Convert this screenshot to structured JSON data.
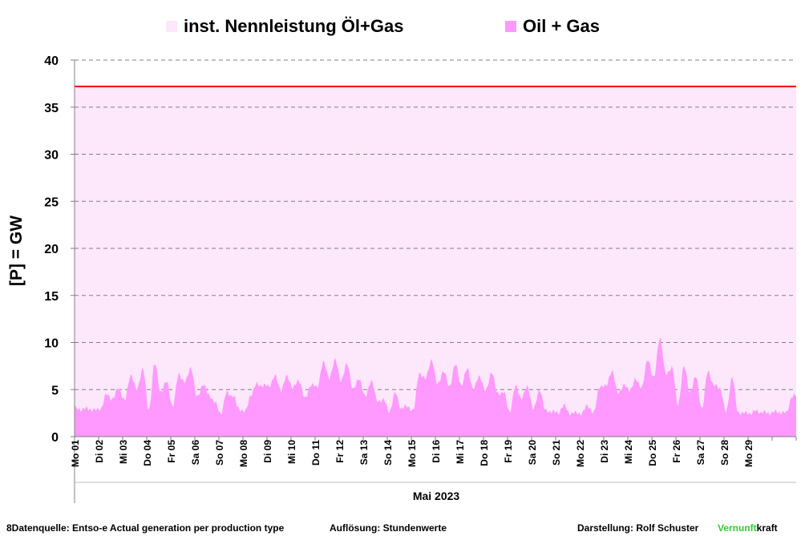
{
  "legend": {
    "capacity_label": "inst. Nennleistung Öl+Gas",
    "series_label": "Oil + Gas",
    "capacity_color": "#fde7fb",
    "series_color": "#ff99ff"
  },
  "footer": {
    "source": "8Datenquelle: Entso-e  Actual generation per production type",
    "resolution": "Auflösung: Stundenwerte",
    "author": "Darstellung:  Rolf Schuster",
    "brand_green": "Vernunft",
    "brand_rest": "kraft"
  },
  "chart_data": {
    "type": "area",
    "ylabel": "[P]  = GW",
    "xlabel": "Mai 2023",
    "ylim": [
      0,
      40
    ],
    "yticks": [
      0,
      5,
      10,
      15,
      20,
      25,
      30,
      35,
      40
    ],
    "grid": true,
    "x_tick_labels": [
      "Mo 01",
      "Di 02",
      "Mi 03",
      "Do 04",
      "Fr 05",
      "Sa 06",
      "So 07",
      "Mo 08",
      "Di 09",
      "Mi 10",
      "Do 11",
      "Fr 12",
      "Sa 13",
      "So 14",
      "Mo 15",
      "Di 16",
      "Mi 17",
      "Do 18",
      "Fr 19",
      "Sa 20",
      "So 21",
      "Mo 22",
      "Di 23",
      "Mi 24",
      "Do 25",
      "Fr 26",
      "Sa 27",
      "So 28",
      "Mo 29"
    ],
    "capacity_line": {
      "name": "inst. Nennleistung Öl+Gas",
      "value": 37.2,
      "color": "#ff0000"
    },
    "series": [
      {
        "name": "Oil + Gas",
        "color": "#ff99ff",
        "day_profiles": [
          [
            3.0,
            2.9,
            3.0,
            2.8
          ],
          [
            3.0,
            4.5,
            4.0,
            5.2
          ],
          [
            3.8,
            6.6,
            5.0,
            7.2
          ],
          [
            2.9,
            7.7,
            4.8,
            5.8
          ],
          [
            3.2,
            6.7,
            5.7,
            7.4
          ],
          [
            4.2,
            5.5,
            4.5,
            3.6
          ],
          [
            2.5,
            4.7,
            4.3,
            3.0
          ],
          [
            2.6,
            4.5,
            5.6,
            5.4
          ],
          [
            5.4,
            6.4,
            5.0,
            6.4
          ],
          [
            5.2,
            6.0,
            4.0,
            5.6
          ],
          [
            5.2,
            7.9,
            6.3,
            8.1
          ],
          [
            6.0,
            7.7,
            5.0,
            6.2
          ],
          [
            4.2,
            6.0,
            3.8,
            3.9
          ],
          [
            2.7,
            4.6,
            3.0,
            3.2
          ],
          [
            2.8,
            6.8,
            6.1,
            8.2
          ],
          [
            5.6,
            6.9,
            5.4,
            7.6
          ],
          [
            5.5,
            7.2,
            5.0,
            6.5
          ],
          [
            4.8,
            6.9,
            4.6,
            4.7
          ],
          [
            2.7,
            5.3,
            4.1,
            5.3
          ],
          [
            2.9,
            5.0,
            2.7,
            2.7
          ],
          [
            2.5,
            3.3,
            2.5,
            2.5
          ],
          [
            2.5,
            3.3,
            2.5,
            5.4
          ],
          [
            5.3,
            7.0,
            4.7,
            5.4
          ],
          [
            5.0,
            6.0,
            5.3,
            8.2
          ],
          [
            6.2,
            10.6,
            6.6,
            7.4
          ],
          [
            3.4,
            7.4,
            4.8,
            6.3
          ],
          [
            3.0,
            7.0,
            5.4,
            5.2
          ],
          [
            2.6,
            6.3,
            2.6,
            2.5
          ],
          [
            2.5,
            2.7,
            2.6,
            2.5
          ],
          [
            2.6,
            2.6,
            2.5,
            4.3
          ]
        ]
      }
    ]
  }
}
